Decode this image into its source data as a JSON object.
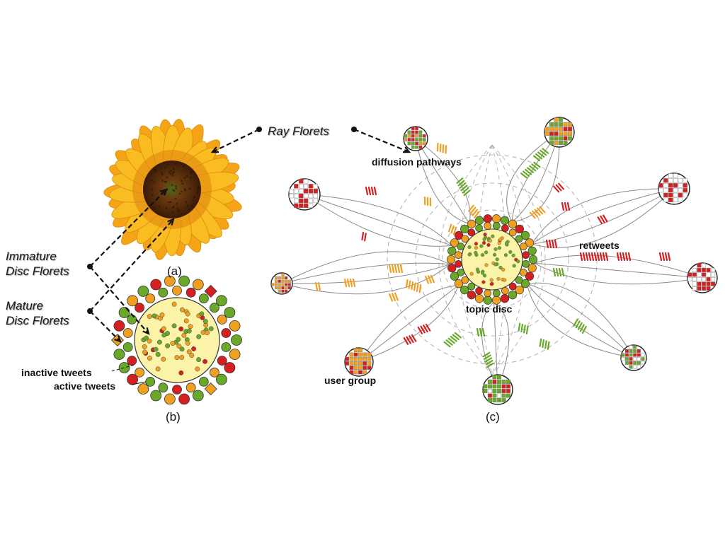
{
  "labels": {
    "ray_florets": "Ray Florets",
    "immature_1": "Immature",
    "immature_2": "Disc Florets",
    "mature_1": "Mature",
    "mature_2": "Disc Florets",
    "inactive_tweets": "inactive tweets",
    "active_tweets": "active tweets",
    "diffusion_pathways": "diffusion pathways",
    "retweets": "retweets",
    "topic_disc": "topic disc",
    "user_group": "user group",
    "cap_a": "(a)",
    "cap_b": "(b)",
    "cap_c": "(c)"
  },
  "colors": {
    "red": "#d42020",
    "orange": "#f0a020",
    "green": "#6aa82a",
    "disc_fill": "#fbf3a8",
    "petal": "#f6b418",
    "flower_center": "#5a2e0c",
    "line": "#8a8a8a",
    "dashed_ring": "#b5b5b5"
  },
  "icons": [
    "sunflower-image",
    "floret-disc-icon",
    "user-group-icon"
  ]
}
